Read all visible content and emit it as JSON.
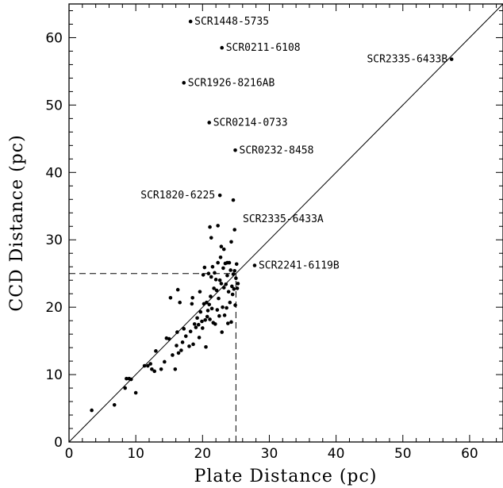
{
  "chart_data": {
    "type": "scatter",
    "xlabel": "Plate Distance (pc)",
    "ylabel": "CCD Distance (pc)",
    "xlim": [
      0,
      65
    ],
    "ylim": [
      0,
      65
    ],
    "xticks": [
      "0",
      "10",
      "20",
      "30",
      "40",
      "50",
      "60"
    ],
    "yticks": [
      "0",
      "10",
      "20",
      "30",
      "40",
      "50",
      "60"
    ],
    "grid": false,
    "reference_lines": [
      {
        "kind": "identity",
        "style": "solid"
      },
      {
        "kind": "horizontal",
        "y": 25,
        "x_range": [
          0,
          25
        ],
        "style": "dashed"
      },
      {
        "kind": "vertical",
        "x": 25,
        "y_range": [
          0,
          25
        ],
        "style": "dashed"
      }
    ],
    "points": [
      [
        3.4,
        4.7
      ],
      [
        6.8,
        5.5
      ],
      [
        8.4,
        8.0
      ],
      [
        8.6,
        9.4
      ],
      [
        9.0,
        9.4
      ],
      [
        9.3,
        9.3
      ],
      [
        10.0,
        7.3
      ],
      [
        11.3,
        11.3
      ],
      [
        11.8,
        11.3
      ],
      [
        12.2,
        11.6
      ],
      [
        12.4,
        10.8
      ],
      [
        12.8,
        10.5
      ],
      [
        13.0,
        13.5
      ],
      [
        13.8,
        10.8
      ],
      [
        14.3,
        11.9
      ],
      [
        14.6,
        15.4
      ],
      [
        15.0,
        15.3
      ],
      [
        15.2,
        21.4
      ],
      [
        15.5,
        12.9
      ],
      [
        15.9,
        10.8
      ],
      [
        16.1,
        14.3
      ],
      [
        16.2,
        16.3
      ],
      [
        16.3,
        22.6
      ],
      [
        16.4,
        13.2
      ],
      [
        16.6,
        20.7
      ],
      [
        16.8,
        13.6
      ],
      [
        17.0,
        14.8
      ],
      [
        17.2,
        16.8
      ],
      [
        17.5,
        15.7
      ],
      [
        18.0,
        14.2
      ],
      [
        18.2,
        16.4
      ],
      [
        18.4,
        20.5
      ],
      [
        18.5,
        21.4
      ],
      [
        18.6,
        14.5
      ],
      [
        18.8,
        17.5
      ],
      [
        19.0,
        17.0
      ],
      [
        19.2,
        18.4
      ],
      [
        19.4,
        17.4
      ],
      [
        19.5,
        15.5
      ],
      [
        19.6,
        22.3
      ],
      [
        19.7,
        19.3
      ],
      [
        19.9,
        17.9
      ],
      [
        20.0,
        16.9
      ],
      [
        20.1,
        24.8
      ],
      [
        20.2,
        20.5
      ],
      [
        20.3,
        25.9
      ],
      [
        20.4,
        18.1
      ],
      [
        20.5,
        14.1
      ],
      [
        20.6,
        20.7
      ],
      [
        20.7,
        18.6
      ],
      [
        20.8,
        19.5
      ],
      [
        20.9,
        25.0
      ],
      [
        21.0,
        20.4
      ],
      [
        21.1,
        18.2
      ],
      [
        21.2,
        21.6
      ],
      [
        21.3,
        24.5
      ],
      [
        21.4,
        19.8
      ],
      [
        21.5,
        26.0
      ],
      [
        21.6,
        17.7
      ],
      [
        21.7,
        22.8
      ],
      [
        21.8,
        25.1
      ],
      [
        21.9,
        17.5
      ],
      [
        22.0,
        24.1
      ],
      [
        22.1,
        22.5
      ],
      [
        22.2,
        19.6
      ],
      [
        22.3,
        26.6
      ],
      [
        22.4,
        21.3
      ],
      [
        22.5,
        18.7
      ],
      [
        22.6,
        24.0
      ],
      [
        22.7,
        27.4
      ],
      [
        22.8,
        23.5
      ],
      [
        22.9,
        16.3
      ],
      [
        23.0,
        20.0
      ],
      [
        23.1,
        25.8
      ],
      [
        23.2,
        22.9
      ],
      [
        23.3,
        18.8
      ],
      [
        23.4,
        26.5
      ],
      [
        23.5,
        23.4
      ],
      [
        23.6,
        19.9
      ],
      [
        23.7,
        24.7
      ],
      [
        23.8,
        17.6
      ],
      [
        23.9,
        22.3
      ],
      [
        24.0,
        26.6
      ],
      [
        24.1,
        20.7
      ],
      [
        24.2,
        25.5
      ],
      [
        24.3,
        17.8
      ],
      [
        24.4,
        23.1
      ],
      [
        24.5,
        21.9
      ],
      [
        24.6,
        24.9
      ],
      [
        24.7,
        22.7
      ],
      [
        24.8,
        25.4
      ],
      [
        24.9,
        20.3
      ],
      [
        25.0,
        24.3
      ],
      [
        25.1,
        26.4
      ],
      [
        25.2,
        22.8
      ],
      [
        25.3,
        23.5
      ],
      [
        21.1,
        31.9
      ],
      [
        21.3,
        30.3
      ],
      [
        22.3,
        32.1
      ],
      [
        23.2,
        28.6
      ],
      [
        24.3,
        29.7
      ],
      [
        24.8,
        31.5
      ],
      [
        22.8,
        29.0
      ],
      [
        23.7,
        26.6
      ]
    ],
    "labeled_points": [
      {
        "x": 18.2,
        "y": 62.4,
        "label": "SCR1448-5735"
      },
      {
        "x": 22.9,
        "y": 58.5,
        "label": "SCR0211-6108"
      },
      {
        "x": 57.3,
        "y": 56.8,
        "label": "SCR2335-6433B"
      },
      {
        "x": 17.2,
        "y": 53.3,
        "label": "SCR1926-8216AB"
      },
      {
        "x": 21.0,
        "y": 47.4,
        "label": "SCR0214-0733"
      },
      {
        "x": 24.9,
        "y": 43.3,
        "label": "SCR0232-8458"
      },
      {
        "x": 22.6,
        "y": 36.6,
        "label": "SCR1820-6225"
      },
      {
        "x": 24.6,
        "y": 35.9,
        "label": "SCR2335-6433A"
      },
      {
        "x": 27.8,
        "y": 26.2,
        "label": "SCR2241-6119B"
      }
    ]
  }
}
